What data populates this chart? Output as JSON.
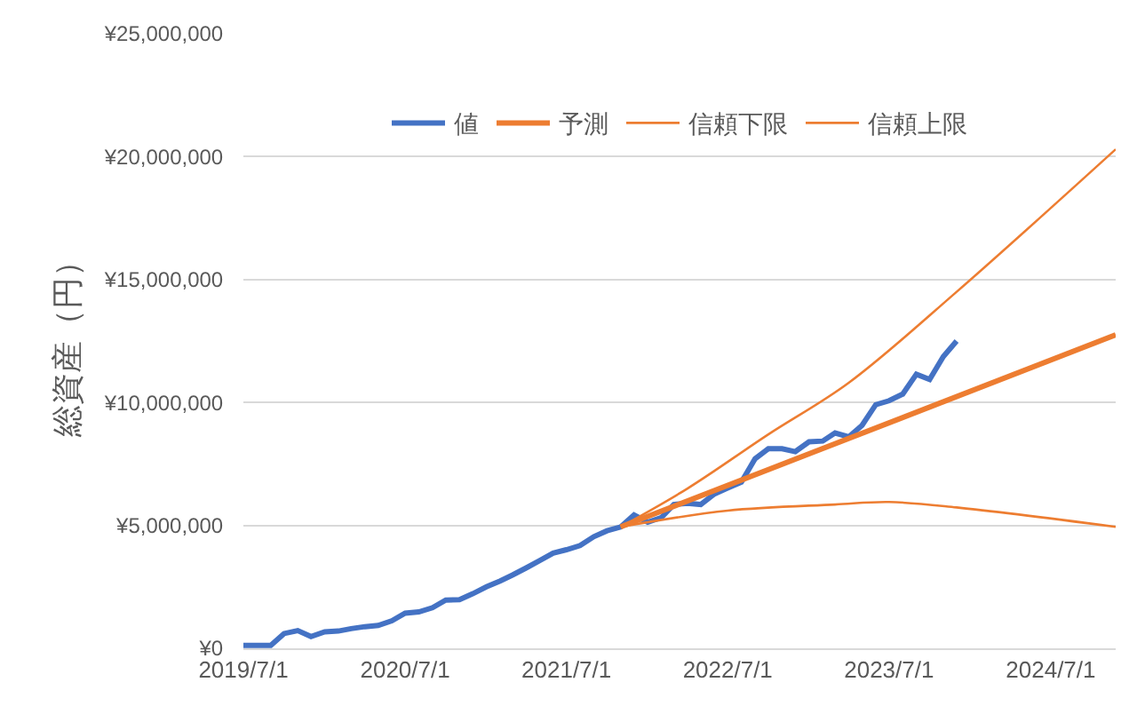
{
  "chart_data": {
    "type": "line",
    "ylabel": "総資産（円）",
    "xlim": [
      "2019-07-01",
      "2024-11-25"
    ],
    "xticks": [
      {
        "value": "2019-07-01",
        "label": "2019/7/1"
      },
      {
        "value": "2020-07-01",
        "label": "2020/7/1"
      },
      {
        "value": "2021-07-01",
        "label": "2021/7/1"
      },
      {
        "value": "2022-07-01",
        "label": "2022/7/1"
      },
      {
        "value": "2023-07-01",
        "label": "2023/7/1"
      },
      {
        "value": "2024-07-01",
        "label": "2024/7/1"
      }
    ],
    "ylim": [
      0,
      25000000
    ],
    "yticks": [
      {
        "value": 0,
        "label": "¥0"
      },
      {
        "value": 5000000,
        "label": "¥5,000,000"
      },
      {
        "value": 10000000,
        "label": "¥10,000,000"
      },
      {
        "value": 15000000,
        "label": "¥15,000,000"
      },
      {
        "value": 20000000,
        "label": "¥20,000,000"
      },
      {
        "value": 25000000,
        "label": "¥25,000,000"
      }
    ],
    "grid": "y",
    "legend": "top",
    "marker": "none",
    "series": [
      {
        "name": "値",
        "color": "#4472c4",
        "x": [
          "2019-07",
          "2019-08",
          "2019-09",
          "2019-10",
          "2019-11",
          "2019-12",
          "2020-01",
          "2020-02",
          "2020-03",
          "2020-04",
          "2020-05",
          "2020-06",
          "2020-07",
          "2020-08",
          "2020-09",
          "2020-10",
          "2020-11",
          "2020-12",
          "2021-01",
          "2021-02",
          "2021-03",
          "2021-04",
          "2021-05",
          "2021-06",
          "2021-07",
          "2021-08",
          "2021-09",
          "2021-10",
          "2021-11",
          "2021-12",
          "2022-01",
          "2022-02",
          "2022-03",
          "2022-04",
          "2022-05",
          "2022-06",
          "2022-07",
          "2022-08",
          "2022-09",
          "2022-10",
          "2022-11",
          "2022-12",
          "2023-01",
          "2023-02",
          "2023-03",
          "2023-04",
          "2023-05",
          "2023-06",
          "2023-07",
          "2023-08",
          "2023-09",
          "2023-10",
          "2023-11",
          "2023-12"
        ],
        "values": [
          120000,
          120000,
          120000,
          600000,
          720000,
          480000,
          670000,
          700000,
          800000,
          880000,
          930000,
          1120000,
          1430000,
          1480000,
          1650000,
          1960000,
          1980000,
          2220000,
          2500000,
          2740000,
          2980000,
          3270000,
          3560000,
          3870000,
          4010000,
          4180000,
          4540000,
          4780000,
          4940000,
          5420000,
          5130000,
          5320000,
          5850000,
          5900000,
          5850000,
          6280000,
          6520000,
          6760000,
          7710000,
          8120000,
          8120000,
          8000000,
          8400000,
          8430000,
          8760000,
          8600000,
          9070000,
          9910000,
          10070000,
          10340000,
          11150000,
          10940000,
          11870000,
          12500000
        ]
      },
      {
        "name": "予測",
        "color": "#ed7d31",
        "x": [
          "2021-11",
          "2024-11-25"
        ],
        "values": [
          4940000,
          12750000
        ]
      },
      {
        "name": "信頼下限",
        "color": "#ed7d31",
        "x": [
          "2021-11",
          "2022-07",
          "2023-03",
          "2023-07",
          "2023-12",
          "2024-11-25"
        ],
        "values": [
          4940000,
          5600000,
          5850000,
          5950000,
          5730000,
          4940000
        ]
      },
      {
        "name": "信頼上限",
        "color": "#ed7d31",
        "x": [
          "2021-11",
          "2022-04",
          "2022-10",
          "2023-04",
          "2023-12",
          "2024-11-25"
        ],
        "values": [
          4940000,
          6500000,
          8700000,
          10800000,
          14500000,
          20300000
        ]
      }
    ]
  }
}
